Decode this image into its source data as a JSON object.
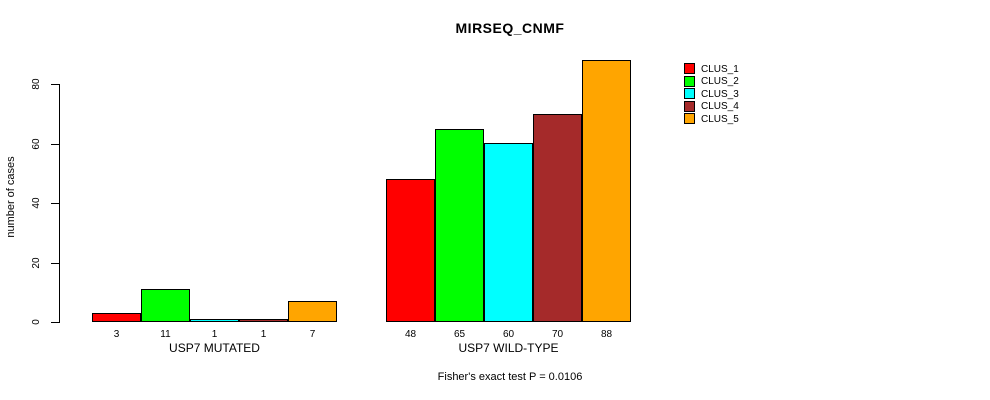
{
  "chart_data": {
    "type": "bar",
    "title": "MIRSEQ_CNMF",
    "xlabel": "",
    "ylabel": "number of cases",
    "subtitle": "Fisher's exact test P = 0.0106",
    "categories": [
      "USP7 MUTATED",
      "USP7 WILD-TYPE"
    ],
    "series": [
      {
        "name": "CLUS_1",
        "color": "#FF0000",
        "values": [
          3,
          48
        ]
      },
      {
        "name": "CLUS_2",
        "color": "#00FF00",
        "values": [
          11,
          65
        ]
      },
      {
        "name": "CLUS_3",
        "color": "#00FFFF",
        "values": [
          1,
          60
        ]
      },
      {
        "name": "CLUS_4",
        "color": "#A52A2A",
        "values": [
          1,
          70
        ]
      },
      {
        "name": "CLUS_5",
        "color": "#FFA500",
        "values": [
          7,
          88
        ]
      }
    ],
    "bar_value_labels": [
      [
        "3",
        "11",
        "1",
        "1",
        "7"
      ],
      [
        "48",
        "65",
        "60",
        "70",
        "88"
      ]
    ],
    "yticks": [
      0,
      20,
      40,
      60,
      80
    ],
    "ylim": [
      0,
      88
    ],
    "grid": false,
    "legend_position": "right",
    "legend_entries": [
      "CLUS_1",
      "CLUS_2",
      "CLUS_3",
      "CLUS_4",
      "CLUS_5"
    ]
  }
}
